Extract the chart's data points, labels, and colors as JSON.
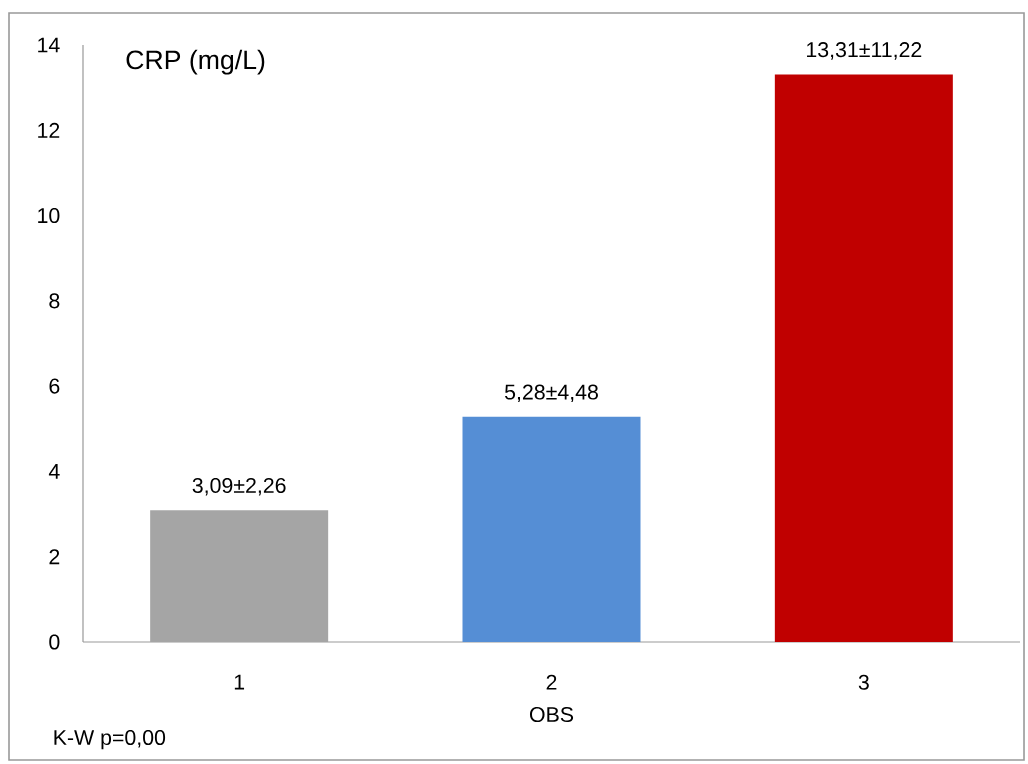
{
  "chart_data": {
    "type": "bar",
    "title": "CRP (mg/L)",
    "xlabel": "OBS",
    "categories": [
      "1",
      "2",
      "3"
    ],
    "values": [
      3.09,
      5.28,
      13.31
    ],
    "colors": [
      "#a5a5a5",
      "#558ed5",
      "#c00000"
    ],
    "value_labels": [
      "3,09±2,26",
      "5,28±4,48",
      "13,31±11,22"
    ],
    "ylim": [
      0,
      14
    ],
    "yticks": [
      0,
      2,
      4,
      6,
      8,
      10,
      12,
      14
    ],
    "annotations": [
      "K-W  p=0,00"
    ],
    "grid": false
  }
}
